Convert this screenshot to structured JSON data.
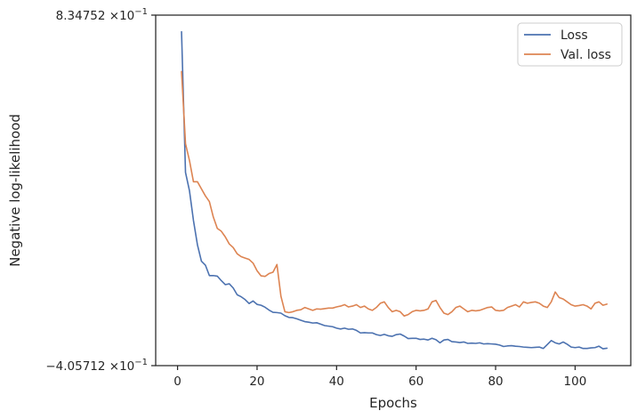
{
  "chart_data": {
    "type": "line",
    "title": "",
    "xlabel": "Epochs",
    "ylabel": "Negative log-likelihood",
    "xlim": [
      -5.5,
      114
    ],
    "ylim": [
      -0.405712,
      0.834752
    ],
    "x_ticks": [
      0,
      20,
      40,
      60,
      80,
      100
    ],
    "x_tick_labels": [
      "0",
      "20",
      "40",
      "60",
      "80",
      "100"
    ],
    "y_ticks": [
      -0.405712,
      0.834752
    ],
    "y_tick_labels": [
      {
        "mantissa": "−4.05712",
        "times": "×10",
        "exp": "−1"
      },
      {
        "mantissa": "8.34752",
        "times": "×10",
        "exp": "−1"
      }
    ],
    "grid": false,
    "legend_position": "top-right",
    "series": [
      {
        "name": "Loss",
        "color": "#4c72b0",
        "x": [
          1,
          2,
          3,
          4,
          5,
          6,
          7,
          8,
          9,
          10,
          11,
          12,
          13,
          14,
          15,
          16,
          17,
          18,
          19,
          20,
          21,
          22,
          23,
          24,
          25,
          26,
          27,
          28,
          29,
          30,
          31,
          32,
          33,
          34,
          35,
          36,
          37,
          38,
          39,
          40,
          41,
          42,
          43,
          44,
          45,
          46,
          47,
          48,
          49,
          50,
          51,
          52,
          53,
          54,
          55,
          56,
          57,
          58,
          59,
          60,
          61,
          62,
          63,
          64,
          65,
          66,
          67,
          68,
          69,
          70,
          71,
          72,
          73,
          74,
          75,
          76,
          77,
          78,
          79,
          80,
          81,
          82,
          83,
          84,
          85,
          86,
          87,
          88,
          89,
          90,
          91,
          92,
          93,
          94,
          95,
          96,
          97,
          98,
          99,
          100,
          101,
          102,
          103,
          104,
          105,
          106,
          107,
          108
        ],
        "values": [
          0.776,
          0.278,
          0.213,
          0.108,
          0.022,
          -0.036,
          -0.05,
          -0.087,
          -0.087,
          -0.089,
          -0.105,
          -0.119,
          -0.116,
          -0.131,
          -0.155,
          -0.162,
          -0.172,
          -0.186,
          -0.177,
          -0.189,
          -0.192,
          -0.199,
          -0.209,
          -0.217,
          -0.218,
          -0.22,
          -0.229,
          -0.235,
          -0.236,
          -0.24,
          -0.245,
          -0.25,
          -0.252,
          -0.255,
          -0.254,
          -0.259,
          -0.264,
          -0.266,
          -0.268,
          -0.273,
          -0.276,
          -0.273,
          -0.277,
          -0.276,
          -0.281,
          -0.29,
          -0.289,
          -0.29,
          -0.29,
          -0.296,
          -0.299,
          -0.295,
          -0.3,
          -0.302,
          -0.296,
          -0.294,
          -0.301,
          -0.31,
          -0.309,
          -0.309,
          -0.313,
          -0.312,
          -0.315,
          -0.309,
          -0.314,
          -0.325,
          -0.315,
          -0.313,
          -0.321,
          -0.322,
          -0.324,
          -0.322,
          -0.327,
          -0.326,
          -0.327,
          -0.325,
          -0.329,
          -0.328,
          -0.329,
          -0.33,
          -0.333,
          -0.338,
          -0.336,
          -0.335,
          -0.337,
          -0.338,
          -0.34,
          -0.341,
          -0.342,
          -0.341,
          -0.34,
          -0.345,
          -0.331,
          -0.317,
          -0.325,
          -0.329,
          -0.322,
          -0.33,
          -0.34,
          -0.342,
          -0.34,
          -0.345,
          -0.345,
          -0.343,
          -0.342,
          -0.337,
          -0.346,
          -0.344
        ]
      },
      {
        "name": "Val. loss",
        "color": "#dd8452",
        "x": [
          1,
          2,
          3,
          4,
          5,
          6,
          7,
          8,
          9,
          10,
          11,
          12,
          13,
          14,
          15,
          16,
          17,
          18,
          19,
          20,
          21,
          22,
          23,
          24,
          25,
          26,
          27,
          28,
          29,
          30,
          31,
          32,
          33,
          34,
          35,
          36,
          37,
          38,
          39,
          40,
          41,
          42,
          43,
          44,
          45,
          46,
          47,
          48,
          49,
          50,
          51,
          52,
          53,
          54,
          55,
          56,
          57,
          58,
          59,
          60,
          61,
          62,
          63,
          64,
          65,
          66,
          67,
          68,
          69,
          70,
          71,
          72,
          73,
          74,
          75,
          76,
          77,
          78,
          79,
          80,
          81,
          82,
          83,
          84,
          85,
          86,
          87,
          88,
          89,
          90,
          91,
          92,
          93,
          94,
          95,
          96,
          97,
          98,
          99,
          100,
          101,
          102,
          103,
          104,
          105,
          106,
          107,
          108
        ],
        "values": [
          0.635,
          0.38,
          0.32,
          0.245,
          0.245,
          0.22,
          0.195,
          0.175,
          0.12,
          0.08,
          0.07,
          0.05,
          0.025,
          0.012,
          -0.01,
          -0.02,
          -0.025,
          -0.03,
          -0.043,
          -0.07,
          -0.088,
          -0.09,
          -0.08,
          -0.075,
          -0.048,
          -0.16,
          -0.215,
          -0.218,
          -0.215,
          -0.21,
          -0.208,
          -0.2,
          -0.205,
          -0.21,
          -0.205,
          -0.206,
          -0.204,
          -0.202,
          -0.202,
          -0.198,
          -0.195,
          -0.19,
          -0.198,
          -0.195,
          -0.19,
          -0.2,
          -0.195,
          -0.205,
          -0.21,
          -0.2,
          -0.185,
          -0.18,
          -0.2,
          -0.215,
          -0.21,
          -0.215,
          -0.23,
          -0.225,
          -0.215,
          -0.21,
          -0.212,
          -0.21,
          -0.205,
          -0.18,
          -0.175,
          -0.2,
          -0.22,
          -0.225,
          -0.215,
          -0.2,
          -0.195,
          -0.205,
          -0.215,
          -0.21,
          -0.212,
          -0.21,
          -0.205,
          -0.2,
          -0.198,
          -0.21,
          -0.212,
          -0.21,
          -0.2,
          -0.195,
          -0.19,
          -0.198,
          -0.18,
          -0.185,
          -0.182,
          -0.18,
          -0.185,
          -0.195,
          -0.2,
          -0.18,
          -0.145,
          -0.165,
          -0.17,
          -0.18,
          -0.19,
          -0.195,
          -0.193,
          -0.19,
          -0.195,
          -0.205,
          -0.185,
          -0.18,
          -0.192,
          -0.188
        ]
      }
    ]
  }
}
